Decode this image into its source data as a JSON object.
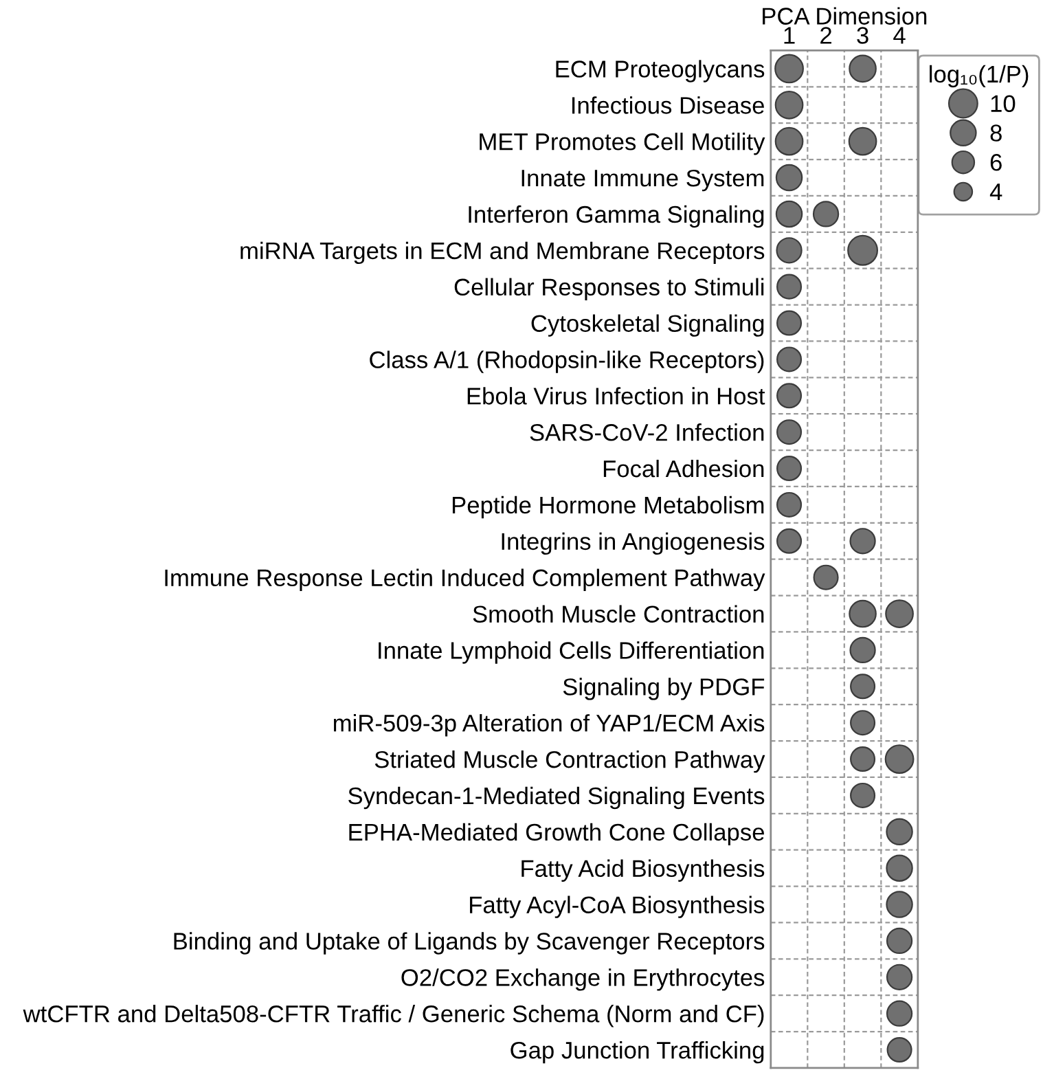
{
  "chart_data": {
    "type": "bubble",
    "orientation": "horizontal",
    "xlabel": "PCA Dimension",
    "categories": [
      "ECM Proteoglycans",
      "Infectious Disease",
      "MET Promotes Cell Motility",
      "Innate Immune System",
      "Interferon Gamma Signaling",
      "miRNA Targets in ECM and Membrane Receptors",
      "Cellular Responses to Stimuli",
      "Cytoskeletal Signaling",
      "Class A/1 (Rhodopsin-like Receptors)",
      "Ebola Virus Infection in Host",
      "SARS-CoV-2 Infection",
      "Focal Adhesion",
      "Peptide Hormone Metabolism",
      "Integrins in Angiogenesis",
      "Immune Response Lectin Induced Complement Pathway",
      "Smooth Muscle Contraction",
      "Innate Lymphoid Cells Differentiation",
      "Signaling by PDGF",
      "miR-509-3p Alteration of YAP1/ECM Axis",
      "Striated Muscle Contraction Pathway",
      "Syndecan-1-Mediated Signaling Events",
      "EPHA-Mediated Growth Cone Collapse",
      "Fatty Acid Biosynthesis",
      "Fatty Acyl-CoA Biosynthesis",
      "Binding and Uptake of Ligands by Scavenger Receptors",
      "O2/CO2 Exchange in Erythrocytes",
      "wtCFTR and Delta508-CFTR Traffic / Generic Schema (Norm and CF)",
      "Gap Junction Trafficking"
    ],
    "xlim": [
      0.5,
      4.5
    ],
    "xticks": [
      1,
      2,
      3,
      4
    ],
    "series": [
      {
        "color": "#707070",
        "values": [
          1,
          1,
          1,
          1,
          1,
          1,
          1,
          1,
          1,
          1,
          1,
          1,
          1,
          1,
          null,
          null,
          null,
          null,
          null,
          null,
          null,
          null,
          null,
          null,
          null,
          null,
          null,
          null
        ],
        "sizes": [
          9.5,
          9,
          9,
          8,
          8,
          7.5,
          7,
          7,
          7,
          7,
          7,
          7,
          7,
          7,
          null,
          null,
          null,
          null,
          null,
          null,
          null,
          null,
          null,
          null,
          null,
          null,
          null,
          null
        ]
      },
      {
        "color": "#707070",
        "values": [
          null,
          null,
          null,
          null,
          2,
          null,
          null,
          null,
          null,
          null,
          null,
          null,
          null,
          null,
          2,
          null,
          null,
          null,
          null,
          null,
          null,
          null,
          null,
          null,
          null,
          null,
          null,
          null
        ],
        "sizes": [
          null,
          null,
          null,
          null,
          7.5,
          null,
          null,
          null,
          null,
          null,
          null,
          null,
          null,
          null,
          7,
          null,
          null,
          null,
          null,
          null,
          null,
          null,
          null,
          null,
          null,
          null,
          null,
          null
        ]
      },
      {
        "color": "#707070",
        "values": [
          3,
          null,
          3,
          null,
          null,
          3,
          null,
          null,
          null,
          null,
          null,
          null,
          null,
          3,
          null,
          3,
          3,
          3,
          3,
          3,
          3,
          null,
          null,
          null,
          null,
          null,
          null,
          null
        ],
        "sizes": [
          8.5,
          null,
          9,
          null,
          null,
          10.5,
          null,
          null,
          null,
          null,
          null,
          null,
          null,
          7.5,
          null,
          8.5,
          7.5,
          7,
          7,
          7,
          7,
          null,
          null,
          null,
          null,
          null,
          null,
          null
        ]
      },
      {
        "color": "#707070",
        "values": [
          null,
          null,
          null,
          null,
          null,
          null,
          null,
          null,
          null,
          null,
          null,
          null,
          null,
          null,
          null,
          4,
          null,
          null,
          null,
          4,
          null,
          4,
          4,
          4,
          4,
          4,
          4,
          4
        ],
        "sizes": [
          null,
          null,
          null,
          null,
          null,
          null,
          null,
          null,
          null,
          null,
          null,
          null,
          null,
          null,
          null,
          9,
          null,
          null,
          null,
          9.5,
          null,
          8,
          8,
          8,
          7.5,
          7.5,
          7.5,
          7
        ]
      }
    ],
    "size_legend": [
      10,
      8,
      6,
      4
    ],
    "legend_title": "log₁₀(1/P)",
    "grid": true,
    "marker": "circle"
  }
}
